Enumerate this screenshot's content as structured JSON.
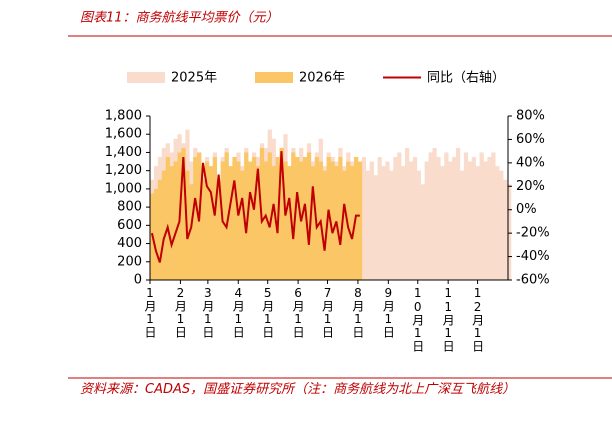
{
  "chart_data": {
    "type": "bar-line",
    "title": "图表11：商务航线平均票价（元）",
    "source": "资料来源：CADAS，国盛证券研究所（注：商务航线为北上广深互飞航线）",
    "xlim": [
      0,
      365
    ],
    "xticks": [
      {
        "value": 0,
        "label": "1月1日"
      },
      {
        "value": 31,
        "label": "2月1日"
      },
      {
        "value": 59,
        "label": "3月1日"
      },
      {
        "value": 90,
        "label": "4月1日"
      },
      {
        "value": 120,
        "label": "5月1日"
      },
      {
        "value": 151,
        "label": "6月1日"
      },
      {
        "value": 181,
        "label": "7月1日"
      },
      {
        "value": 212,
        "label": "8月1日"
      },
      {
        "value": 243,
        "label": "9月1日"
      },
      {
        "value": 273,
        "label": "10月1日"
      },
      {
        "value": 304,
        "label": "11月1日"
      },
      {
        "value": 334,
        "label": "12月1日"
      }
    ],
    "ylim": [
      0,
      1800
    ],
    "yticks": [
      0,
      200,
      400,
      600,
      800,
      {
        "value": 1000,
        "label": "1,000"
      },
      {
        "value": 1200,
        "label": "1,200"
      },
      {
        "value": 1400,
        "label": "1,400"
      },
      {
        "value": 1600,
        "label": "1,600"
      },
      {
        "value": 1800,
        "label": "1,800"
      }
    ],
    "y2lim": [
      -60,
      80
    ],
    "y2ticks": [
      {
        "value": -60,
        "label": "-60%"
      },
      {
        "value": -40,
        "label": "-40%"
      },
      {
        "value": -20,
        "label": "-20%"
      },
      {
        "value": 0,
        "label": "0%"
      },
      {
        "value": 20,
        "label": "20%"
      },
      {
        "value": 40,
        "label": "40%"
      },
      {
        "value": 60,
        "label": "60%"
      },
      {
        "value": 80,
        "label": "80%"
      }
    ],
    "series": [
      {
        "name": "2025年",
        "color": "#f9dccc",
        "kind": "bar",
        "x": [
          0,
          4,
          8,
          12,
          16,
          20,
          24,
          28,
          32,
          36,
          40,
          44,
          48,
          52,
          56,
          60,
          64,
          68,
          72,
          76,
          80,
          84,
          88,
          92,
          96,
          100,
          104,
          108,
          112,
          116,
          120,
          124,
          128,
          132,
          136,
          140,
          144,
          148,
          152,
          156,
          160,
          164,
          168,
          172,
          176,
          180,
          184,
          188,
          192,
          196,
          200,
          204,
          208,
          212,
          216,
          220,
          224,
          228,
          232,
          236,
          240,
          244,
          248,
          252,
          256,
          260,
          264,
          268,
          272,
          276,
          280,
          284,
          288,
          292,
          296,
          300,
          304,
          308,
          312,
          316,
          320,
          324,
          328,
          332,
          336,
          340,
          344,
          348,
          352,
          356,
          360,
          364
        ],
        "values": [
          1100,
          1250,
          1350,
          1450,
          1500,
          1400,
          1550,
          1600,
          1500,
          1650,
          1300,
          1450,
          1400,
          1250,
          1350,
          1200,
          1400,
          1100,
          1350,
          1450,
          1200,
          1300,
          1400,
          1250,
          1450,
          1150,
          1400,
          1350,
          1500,
          1450,
          1650,
          1550,
          1300,
          1400,
          1600,
          1250,
          1450,
          1350,
          1450,
          1350,
          1500,
          1300,
          1400,
          1550,
          1250,
          1400,
          1350,
          1300,
          1450,
          1250,
          1400,
          1300,
          1350,
          1250,
          1350,
          1200,
          1300,
          1150,
          1350,
          1250,
          1300,
          1200,
          1350,
          1400,
          1250,
          1450,
          1300,
          1350,
          1200,
          1050,
          1300,
          1400,
          1450,
          1350,
          1250,
          1400,
          1300,
          1350,
          1450,
          1200,
          1400,
          1300,
          1350,
          1250,
          1400,
          1300,
          1350,
          1400,
          1250,
          1200,
          1100,
          1050
        ]
      },
      {
        "name": "2026年",
        "color": "#fbc665",
        "kind": "bar",
        "x": [
          0,
          4,
          8,
          12,
          16,
          20,
          24,
          28,
          32,
          36,
          40,
          44,
          48,
          52,
          56,
          60,
          64,
          68,
          72,
          76,
          80,
          84,
          88,
          92,
          96,
          100,
          104,
          108,
          112,
          116,
          120,
          124,
          128,
          132,
          136,
          140,
          144,
          148,
          152,
          156,
          160,
          164,
          168,
          172,
          176,
          180,
          184,
          188,
          192,
          196,
          200,
          204,
          208,
          212
        ],
        "values": [
          950,
          1000,
          1100,
          1200,
          1350,
          1250,
          1300,
          1400,
          1450,
          1200,
          1050,
          1350,
          1400,
          1100,
          1300,
          1250,
          1350,
          1100,
          1300,
          1400,
          1250,
          1350,
          1300,
          1200,
          1400,
          1300,
          1350,
          1250,
          1450,
          1300,
          1400,
          1250,
          1350,
          1450,
          1300,
          1250,
          1400,
          1350,
          1300,
          1350,
          1400,
          1250,
          1350,
          1300,
          1200,
          1350,
          1300,
          1250,
          1350,
          1200,
          1300,
          1250,
          1350,
          1300
        ]
      },
      {
        "name": "同比（右轴）",
        "color": "#c00000",
        "kind": "line",
        "axis": "y2",
        "x": [
          0,
          4,
          8,
          12,
          16,
          20,
          24,
          28,
          32,
          36,
          40,
          44,
          48,
          52,
          56,
          60,
          64,
          68,
          72,
          76,
          80,
          84,
          88,
          92,
          96,
          100,
          104,
          108,
          112,
          116,
          120,
          124,
          128,
          132,
          136,
          140,
          144,
          148,
          152,
          156,
          160,
          164,
          168,
          172,
          176,
          180,
          184,
          188,
          192,
          196,
          200,
          204,
          208,
          212
        ],
        "values": [
          -20,
          -35,
          -45,
          -25,
          -15,
          -30,
          -20,
          -10,
          45,
          -25,
          -15,
          10,
          -10,
          40,
          20,
          15,
          -5,
          30,
          -10,
          -15,
          5,
          25,
          -5,
          10,
          -20,
          15,
          0,
          35,
          -10,
          -5,
          -15,
          5,
          -20,
          50,
          -5,
          10,
          -25,
          15,
          -10,
          5,
          -30,
          20,
          -15,
          -10,
          -35,
          0,
          -20,
          -10,
          -30,
          5,
          -15,
          -25,
          -5,
          -5
        ]
      }
    ]
  }
}
